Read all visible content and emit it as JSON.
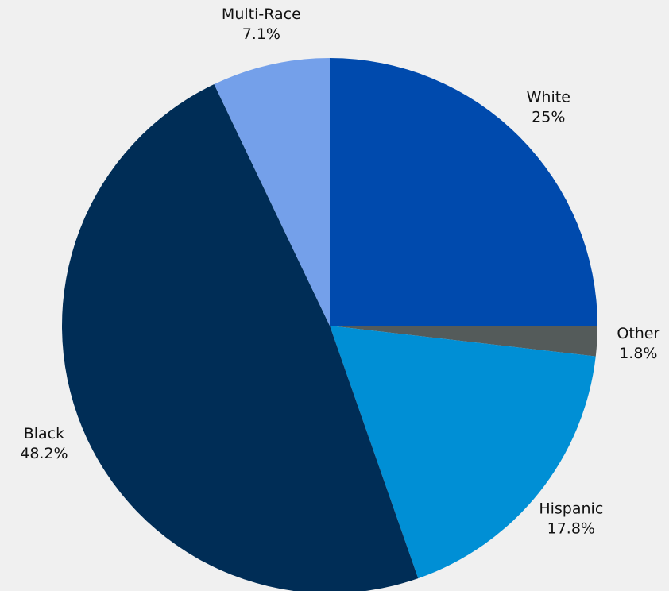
{
  "chart_data": {
    "type": "pie",
    "categories": [
      "White",
      "Other",
      "Hispanic",
      "Black",
      "Multi-Race"
    ],
    "values": [
      25,
      1.8,
      17.8,
      48.2,
      7.1
    ],
    "value_labels": [
      "25%",
      "1.8%",
      "17.8%",
      "48.2%",
      "7.1%"
    ],
    "colors": [
      "#004aad",
      "#545b5a",
      "#008fd5",
      "#002d56",
      "#74a0ea"
    ]
  }
}
